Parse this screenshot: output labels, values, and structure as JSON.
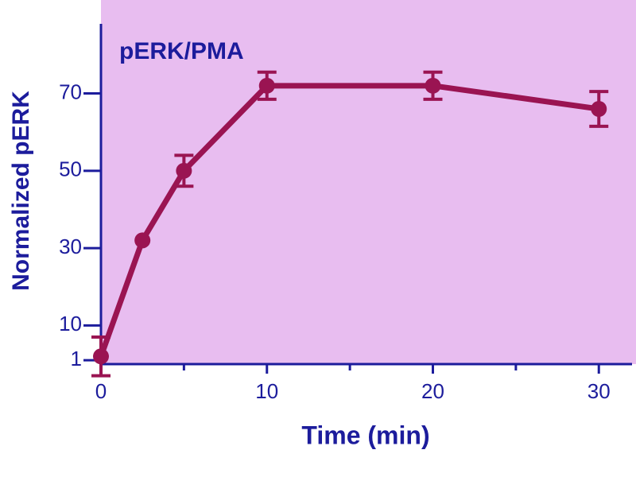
{
  "chart_data": {
    "type": "line",
    "title": "pERK/PMA",
    "x_label": "Time (min)",
    "y_label": "Normalized pERK",
    "x": [
      0,
      2.5,
      5,
      10,
      20,
      30
    ],
    "series": [
      {
        "color": "#9a1452",
        "values": [
          2,
          32,
          50,
          72,
          72,
          66
        ],
        "errors": [
          5,
          0,
          4,
          3.5,
          3.5,
          4.5
        ]
      }
    ],
    "xlim": [
      0,
      32
    ],
    "xticks": [
      0,
      10,
      20,
      30
    ],
    "xminor": [
      5,
      15,
      25
    ],
    "ylim": [
      0,
      88
    ],
    "yticks": [
      1,
      10,
      30,
      50,
      70
    ],
    "background": "#e8bdf0",
    "axis_color": "#1c1c9c"
  }
}
